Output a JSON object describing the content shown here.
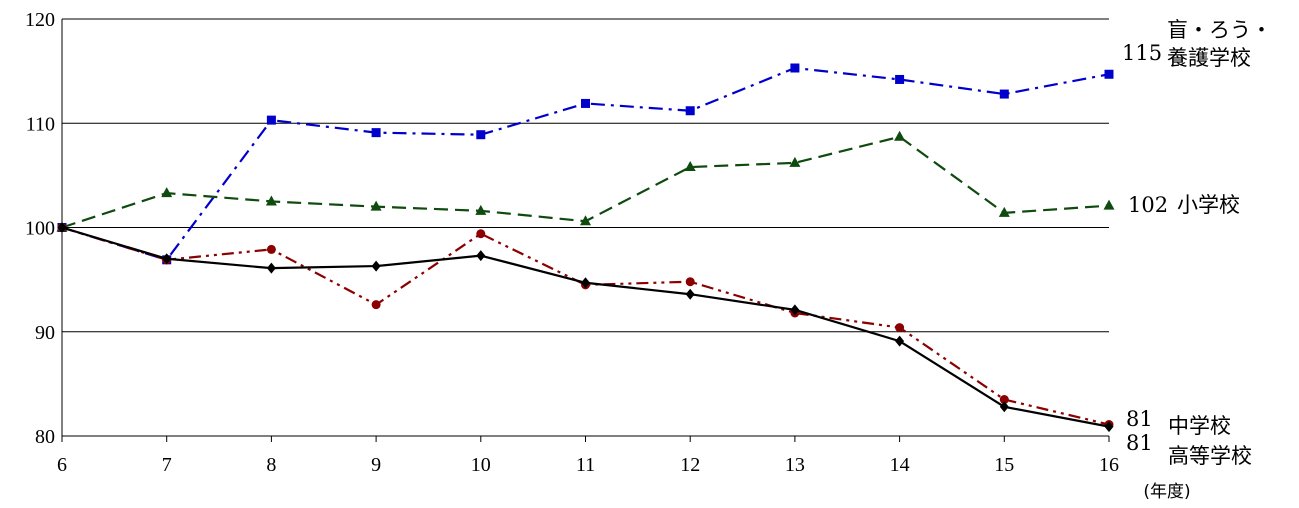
{
  "chart_data": {
    "type": "line",
    "x": [
      6,
      7,
      8,
      9,
      10,
      11,
      12,
      13,
      14,
      15,
      16
    ],
    "x_tick_labels": [
      "6",
      "7",
      "8",
      "9",
      "10",
      "11",
      "12",
      "13",
      "14",
      "15",
      "16"
    ],
    "x_unit": "(年度)",
    "ylim": [
      80,
      120
    ],
    "y_tick_labels": [
      "80",
      "90",
      "100",
      "110",
      "120"
    ],
    "grid": true,
    "series": [
      {
        "key": "special",
        "name_lines": [
          "盲・ろう・",
          "養護学校"
        ],
        "end_value_label": "115",
        "color": "#0000cc",
        "marker": "square",
        "dash": "dashdot",
        "values": [
          100,
          96.9,
          110.3,
          109.1,
          108.9,
          111.9,
          111.2,
          115.3,
          114.2,
          112.8,
          114.7
        ]
      },
      {
        "key": "elementary",
        "name_lines": [
          "小学校"
        ],
        "end_value_label": "102",
        "color": "#0f4a0f",
        "marker": "triangle",
        "dash": "dash",
        "values": [
          100,
          103.3,
          102.5,
          102.0,
          101.6,
          100.6,
          105.8,
          106.2,
          108.7,
          101.4,
          102.1
        ]
      },
      {
        "key": "highschool",
        "name_lines": [
          "高等学校"
        ],
        "end_value_label": "81",
        "color": "#8b0000",
        "marker": "circle",
        "dash": "dashdotdot",
        "values": [
          100,
          96.9,
          97.9,
          92.6,
          99.4,
          94.5,
          94.8,
          91.8,
          90.4,
          83.5,
          81.1
        ]
      },
      {
        "key": "juniorhigh",
        "name_lines": [
          "中学校"
        ],
        "end_value_label": "81",
        "color": "#000000",
        "marker": "diamond",
        "dash": "solid",
        "values": [
          100,
          97.0,
          96.1,
          96.3,
          97.3,
          94.7,
          93.6,
          92.1,
          89.1,
          82.8,
          80.9
        ]
      }
    ]
  }
}
